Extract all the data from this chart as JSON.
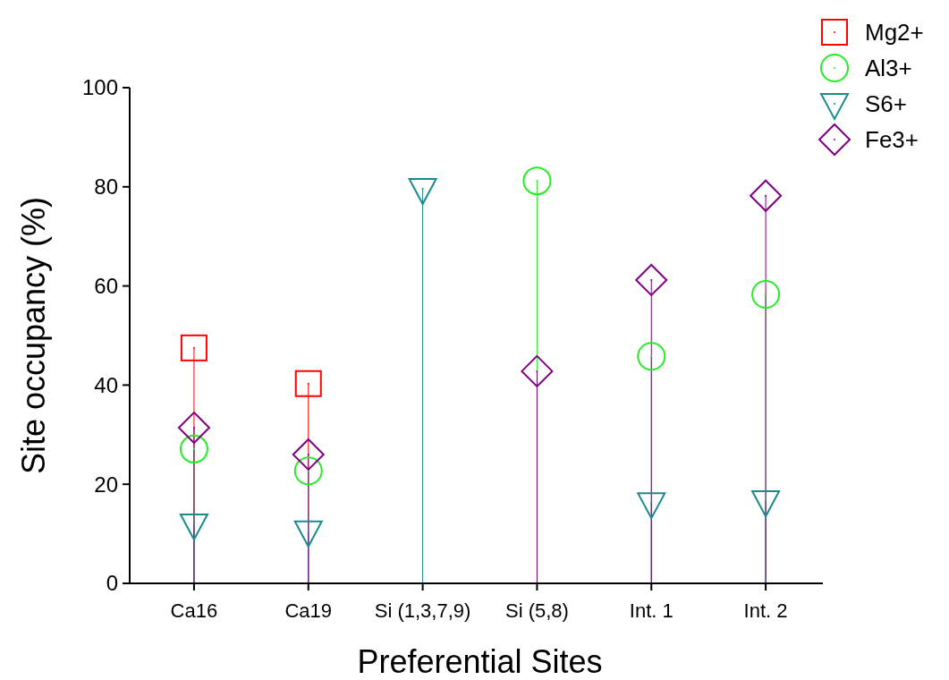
{
  "chart_data": {
    "type": "lollipop",
    "xlabel": "Preferential Sites",
    "ylabel": "Site occupancy (%)",
    "categories": [
      "Ca16",
      "Ca19",
      "Si (1,3,7,9)",
      "Si (5,8)",
      "Int. 1",
      "Int. 2"
    ],
    "ylim": [
      0,
      100
    ],
    "yticks": [
      0,
      20,
      40,
      60,
      80,
      100
    ],
    "legend": "top right",
    "grid": false,
    "series": [
      {
        "name": "Mg2+",
        "color": "#ff0000",
        "marker": "square",
        "values": [
          47.5,
          40.3,
          null,
          null,
          null,
          null
        ]
      },
      {
        "name": "Al3+",
        "color": "#22ee22",
        "marker": "circle",
        "values": [
          27.1,
          22.7,
          null,
          81.2,
          45.8,
          58.3
        ]
      },
      {
        "name": "S6+",
        "color": "#1a8c8c",
        "marker": "triangle",
        "values": [
          11.9,
          10.5,
          79.6,
          null,
          16.2,
          16.6
        ]
      },
      {
        "name": "Fe3+",
        "color": "#800080",
        "marker": "diamond",
        "values": [
          31.4,
          26.0,
          null,
          42.8,
          61.2,
          78.2
        ]
      }
    ]
  }
}
